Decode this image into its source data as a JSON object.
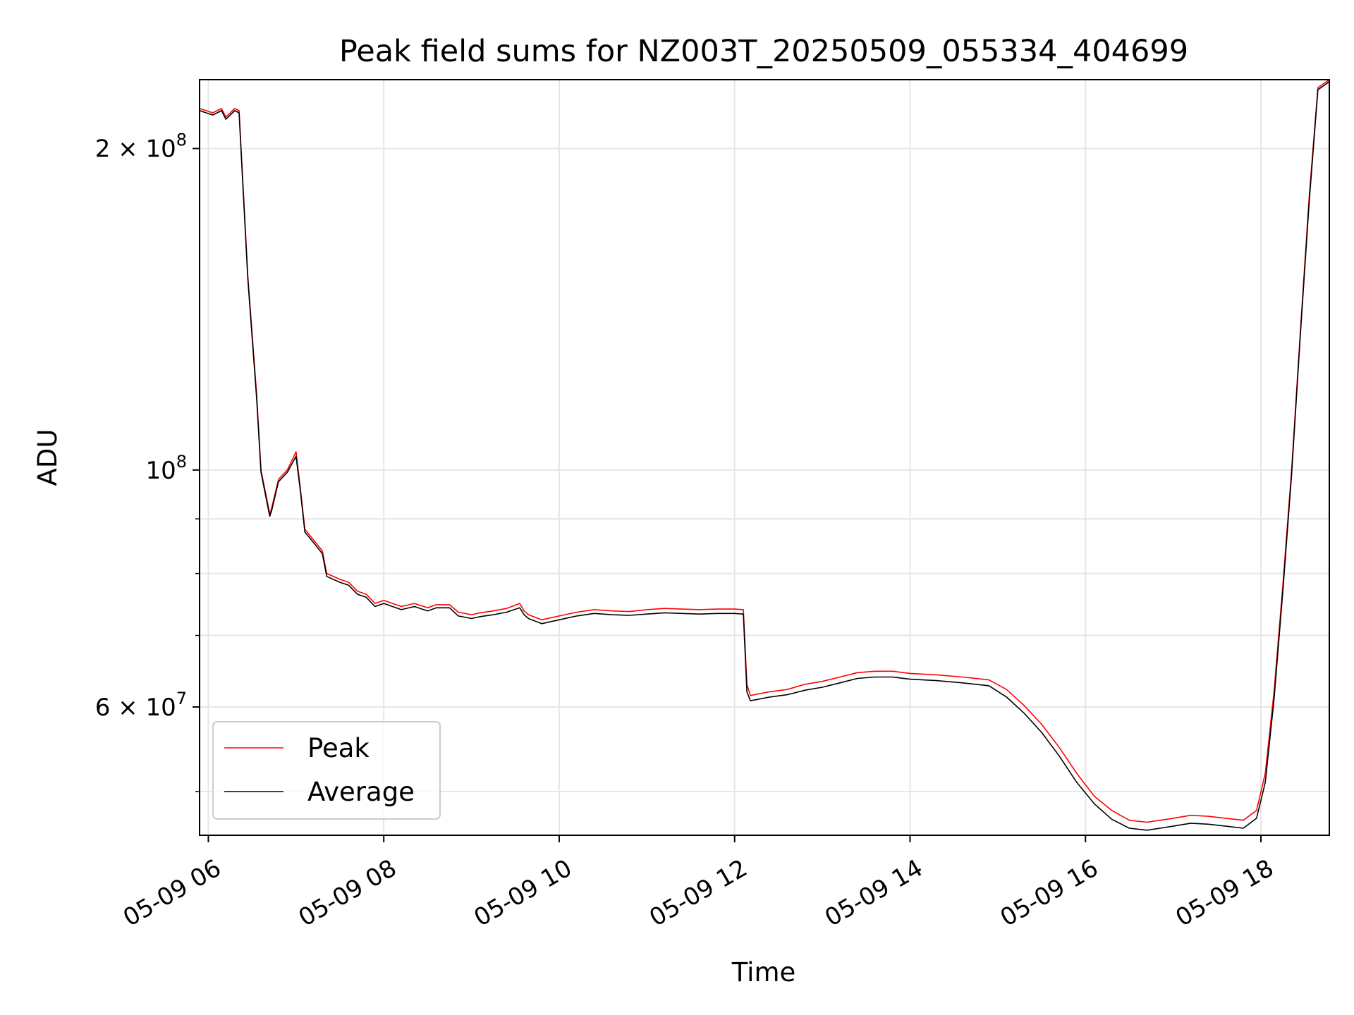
{
  "chart_data": {
    "type": "line",
    "title": "Peak field sums for NZ003T_20250509_055334_404699",
    "xlabel": "Time",
    "ylabel": "ADU",
    "yscale": "log",
    "ylim": [
      45500000,
      232000000
    ],
    "x_unit": "hours (05-09)",
    "xlim": [
      5.9,
      18.78
    ],
    "grid": true,
    "legend": "lower-left",
    "x_ticks": [
      {
        "value": 6,
        "label": "05-09 06"
      },
      {
        "value": 8,
        "label": "05-09 08"
      },
      {
        "value": 10,
        "label": "05-09 10"
      },
      {
        "value": 12,
        "label": "05-09 12"
      },
      {
        "value": 14,
        "label": "05-09 14"
      },
      {
        "value": 16,
        "label": "05-09 16"
      },
      {
        "value": 18,
        "label": "05-09 18"
      }
    ],
    "y_ticks": [
      {
        "value": 200000000,
        "label": "2 × 10",
        "exp": "8"
      },
      {
        "value": 100000000,
        "label": "10",
        "exp": "8"
      },
      {
        "value": 60000000,
        "label": "6 × 10",
        "exp": "7"
      }
    ],
    "y_minor_ticks": [
      50000000,
      70000000,
      80000000,
      90000000
    ],
    "colors": {
      "Peak": "#ff0000",
      "Average": "#000000"
    },
    "series": [
      {
        "name": "Peak",
        "x": [
          5.9,
          6.05,
          6.15,
          6.2,
          6.3,
          6.35,
          6.45,
          6.55,
          6.6,
          6.7,
          6.72,
          6.8,
          6.9,
          7.0,
          7.05,
          7.1,
          7.2,
          7.3,
          7.35,
          7.5,
          7.6,
          7.7,
          7.8,
          7.9,
          8.0,
          8.2,
          8.35,
          8.5,
          8.6,
          8.75,
          8.85,
          9.0,
          9.1,
          9.25,
          9.4,
          9.55,
          9.6,
          9.65,
          9.8,
          10.0,
          10.2,
          10.4,
          10.6,
          10.8,
          11.0,
          11.2,
          11.4,
          11.6,
          11.8,
          12.0,
          12.1,
          12.14,
          12.18,
          12.4,
          12.6,
          12.8,
          13.0,
          13.2,
          13.4,
          13.6,
          13.8,
          14.0,
          14.3,
          14.6,
          14.9,
          15.1,
          15.3,
          15.5,
          15.7,
          15.9,
          16.1,
          16.3,
          16.5,
          16.7,
          16.85,
          17.0,
          17.2,
          17.4,
          17.6,
          17.8,
          17.95,
          18.05,
          18.15,
          18.25,
          18.35,
          18.45,
          18.55,
          18.65,
          18.78
        ],
        "values": [
          218000000,
          216000000,
          218000000,
          214000000,
          218000000,
          217000000,
          152000000,
          118000000,
          100000000,
          91000000,
          92000000,
          98000000,
          100000000,
          104000000,
          96000000,
          88000000,
          86000000,
          84000000,
          80000000,
          79000000,
          78500000,
          77000000,
          76500000,
          75000000,
          75500000,
          74500000,
          75000000,
          74300000,
          74800000,
          74800000,
          73600000,
          73200000,
          73500000,
          73800000,
          74200000,
          75000000,
          73800000,
          73200000,
          72400000,
          73000000,
          73600000,
          74000000,
          73800000,
          73700000,
          74000000,
          74200000,
          74100000,
          74000000,
          74100000,
          74100000,
          74000000,
          63000000,
          61500000,
          62000000,
          62300000,
          63000000,
          63400000,
          64000000,
          64600000,
          64800000,
          64800000,
          64500000,
          64300000,
          64000000,
          63600000,
          62300000,
          60200000,
          57800000,
          55000000,
          52000000,
          49500000,
          48000000,
          47000000,
          46800000,
          47000000,
          47200000,
          47500000,
          47400000,
          47200000,
          47000000,
          48000000,
          52000000,
          62000000,
          78000000,
          100000000,
          135000000,
          180000000,
          228000000,
          232000000
        ]
      },
      {
        "name": "Average",
        "x": [
          5.9,
          6.05,
          6.15,
          6.2,
          6.3,
          6.35,
          6.45,
          6.55,
          6.6,
          6.7,
          6.72,
          6.8,
          6.9,
          7.0,
          7.05,
          7.1,
          7.2,
          7.3,
          7.35,
          7.5,
          7.6,
          7.7,
          7.8,
          7.9,
          8.0,
          8.2,
          8.35,
          8.5,
          8.6,
          8.75,
          8.85,
          9.0,
          9.1,
          9.25,
          9.4,
          9.55,
          9.6,
          9.65,
          9.8,
          10.0,
          10.2,
          10.4,
          10.6,
          10.8,
          11.0,
          11.2,
          11.4,
          11.6,
          11.8,
          12.0,
          12.1,
          12.14,
          12.18,
          12.4,
          12.6,
          12.8,
          13.0,
          13.2,
          13.4,
          13.6,
          13.8,
          14.0,
          14.3,
          14.6,
          14.9,
          15.1,
          15.3,
          15.5,
          15.7,
          15.9,
          16.1,
          16.3,
          16.5,
          16.7,
          16.85,
          17.0,
          17.2,
          17.4,
          17.6,
          17.8,
          17.95,
          18.05,
          18.15,
          18.25,
          18.35,
          18.45,
          18.55,
          18.65,
          18.78
        ],
        "values": [
          217000000,
          215000000,
          217000000,
          213000000,
          217000000,
          216000000,
          151000000,
          117000000,
          99500000,
          90500000,
          91500000,
          97500000,
          99500000,
          103000000,
          95500000,
          87500000,
          85500000,
          83500000,
          79500000,
          78500000,
          78000000,
          76500000,
          76000000,
          74500000,
          75000000,
          74000000,
          74500000,
          73800000,
          74300000,
          74300000,
          73000000,
          72600000,
          72900000,
          73200000,
          73600000,
          74300000,
          73200000,
          72600000,
          71800000,
          72400000,
          73000000,
          73400000,
          73200000,
          73100000,
          73300000,
          73500000,
          73400000,
          73300000,
          73400000,
          73400000,
          73300000,
          62000000,
          60800000,
          61300000,
          61600000,
          62200000,
          62600000,
          63200000,
          63800000,
          64000000,
          64000000,
          63700000,
          63500000,
          63200000,
          62800000,
          61300000,
          59200000,
          56800000,
          54000000,
          51000000,
          48700000,
          47100000,
          46200000,
          46000000,
          46200000,
          46400000,
          46700000,
          46600000,
          46400000,
          46200000,
          47200000,
          51000000,
          61000000,
          77000000,
          99000000,
          134000000,
          178000000,
          227000000,
          231000000
        ]
      }
    ]
  }
}
